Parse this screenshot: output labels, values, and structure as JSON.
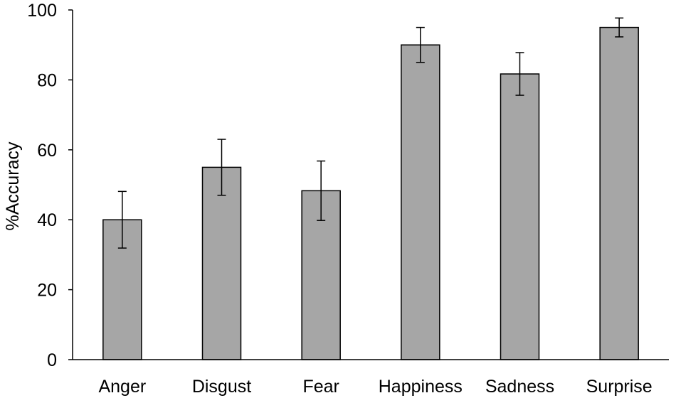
{
  "chart_data": {
    "type": "bar",
    "title": "",
    "xlabel": "",
    "ylabel": "%Accuracy",
    "categories": [
      "Anger",
      "Disgust",
      "Fear",
      "Happiness",
      "Sadness",
      "Surprise"
    ],
    "values": [
      40,
      55,
      48.3,
      90,
      81.7,
      95
    ],
    "error_bars": [
      8.1,
      8.0,
      8.5,
      5.0,
      6.1,
      2.7
    ],
    "ylim": [
      0,
      100
    ],
    "yticks": [
      0,
      20,
      40,
      60,
      80,
      100
    ],
    "grid": false,
    "legend": "none",
    "bar_color": "#a6a6a6",
    "bar_edge_color": "#000000",
    "axis_color": "#000000"
  }
}
